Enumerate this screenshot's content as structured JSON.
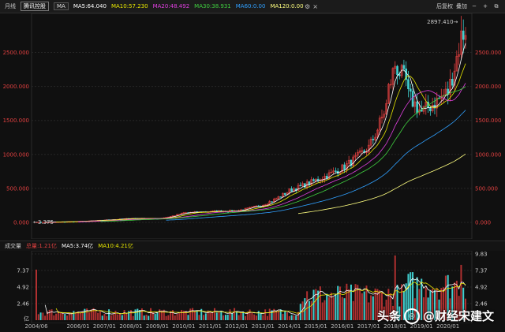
{
  "toolbar": {
    "period": "月线",
    "stock": "腾讯控股",
    "indicator": "MA",
    "ma5": "MA5:64.040",
    "ma10": "MA10:57.230",
    "ma20": "MA20:48.492",
    "ma30": "MA30:38.931",
    "ma60": "MA60:0.00",
    "ma120": "MA120:0.00",
    "adjust": "后复权",
    "overlay": "叠加",
    "colors": {
      "ma5": "#ffffff",
      "ma10": "#e6e600",
      "ma20": "#e040e0",
      "ma30": "#40d040",
      "ma60": "#30a0ff",
      "ma120": "#ffff80"
    }
  },
  "price_axis": {
    "left_labels": [
      "2500.000",
      "2000.000",
      "1500.000",
      "1000.000",
      "500.000",
      "0.000"
    ],
    "right_labels": [
      "2500.000",
      "2000.000",
      "1500.000",
      "1000.000",
      "500.000",
      "0.000"
    ],
    "high_label": "2897.410→",
    "low_label": "←3.375",
    "color": "#e04040"
  },
  "volume": {
    "title": "成交量",
    "total": "总量:1.21亿",
    "ma5": "MA5:3.74亿",
    "ma10": "MA10:4.21亿",
    "left_labels": [
      "7.37",
      "4.92",
      "2.46",
      "亿"
    ],
    "right_labels": [
      "9.83",
      "7.37",
      "4.92",
      "2.46"
    ]
  },
  "x_axis": [
    "2004/06",
    "2006/01",
    "2007/01",
    "2008/01",
    "2009/01",
    "2010/01",
    "2011/01",
    "2012/01",
    "2013/01",
    "2014/01",
    "2015/01",
    "2016/01",
    "2017/01",
    "2018/01",
    "2019/01",
    "2020/01"
  ],
  "watermark": {
    "prefix": "头条",
    "handle": "@财经宋建文"
  },
  "chart_data": {
    "type": "candlestick",
    "price_ylim": [
      0,
      2900
    ],
    "volume_ylim": [
      0,
      9.83
    ],
    "anchors": [
      {
        "x": "2004/06",
        "close": 3.4
      },
      {
        "x": "2006/01",
        "close": 15
      },
      {
        "x": "2007/01",
        "close": 35
      },
      {
        "x": "2008/01",
        "close": 60
      },
      {
        "x": "2009/01",
        "close": 55
      },
      {
        "x": "2010/01",
        "close": 140
      },
      {
        "x": "2011/01",
        "close": 160
      },
      {
        "x": "2012/01",
        "close": 170
      },
      {
        "x": "2013/01",
        "close": 260
      },
      {
        "x": "2014/01",
        "close": 470
      },
      {
        "x": "2015/01",
        "close": 620
      },
      {
        "x": "2016/01",
        "close": 800
      },
      {
        "x": "2017/01",
        "close": 1100
      },
      {
        "x": "2018/01",
        "close": 2150
      },
      {
        "x": "2019/01",
        "close": 1620
      },
      {
        "x": "2020/01",
        "close": 1920
      },
      {
        "x": "2020/08",
        "close": 2897.41
      }
    ]
  }
}
